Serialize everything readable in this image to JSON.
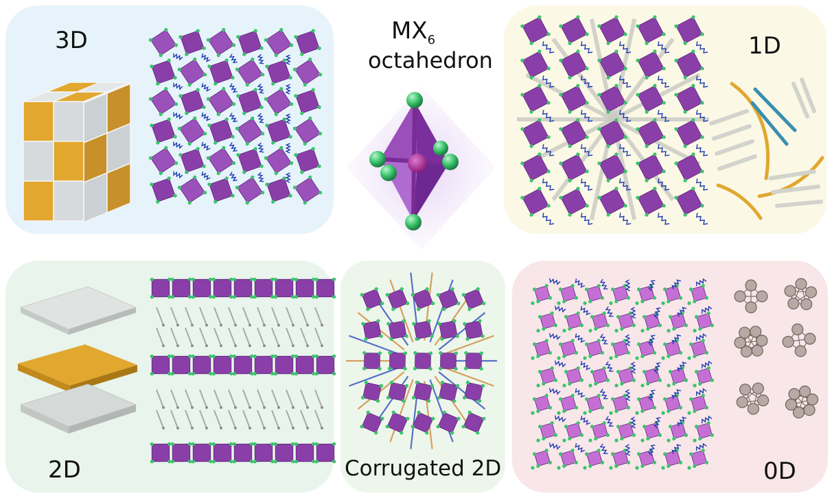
{
  "labels": {
    "three_d": "3D",
    "one_d": "1D",
    "two_d": "2D",
    "corrugated": "Corrugated 2D",
    "zero_d": "0D",
    "octa_main": "MX",
    "octa_sub": "6",
    "octa_line2": "octahedron"
  },
  "colors": {
    "panel_3d": "#e6f3fb",
    "panel_1d": "#fbf9e6",
    "panel_2d": "#e8f4ec",
    "panel_corr": "#edf6ea",
    "panel_0d": "#f8e6e9",
    "octahedron": "#8a3fa8",
    "halide": "#3ac46b",
    "organic": "#1d3bb0",
    "gold": "#e1a72f",
    "gray_block": "#d6dadc"
  }
}
